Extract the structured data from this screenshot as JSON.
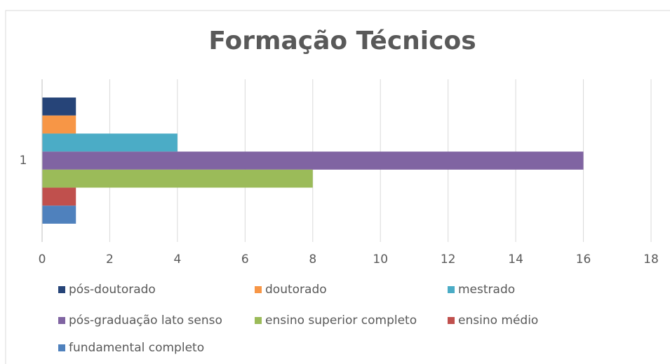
{
  "chart_data": {
    "type": "bar",
    "orientation": "horizontal",
    "title": "Formação Técnicos",
    "categories": [
      "1"
    ],
    "series": [
      {
        "name": "pós-doutorado",
        "color": "#264478",
        "values": [
          1
        ]
      },
      {
        "name": "doutorado",
        "color": "#f79646",
        "values": [
          1
        ]
      },
      {
        "name": "mestrado",
        "color": "#4bacc6",
        "values": [
          4
        ]
      },
      {
        "name": "pós-graduação lato senso",
        "color": "#8064a2",
        "values": [
          16
        ]
      },
      {
        "name": "ensino superior completo",
        "color": "#9bbb59",
        "values": [
          8
        ]
      },
      {
        "name": "ensino médio",
        "color": "#c0504d",
        "values": [
          1
        ]
      },
      {
        "name": "fundamental completo",
        "color": "#4f81bd",
        "values": [
          1
        ]
      }
    ],
    "xlim": [
      0,
      18
    ],
    "xticks": [
      0,
      2,
      4,
      6,
      8,
      10,
      12,
      14,
      16,
      18
    ],
    "grid": true,
    "legend": "bottom"
  }
}
